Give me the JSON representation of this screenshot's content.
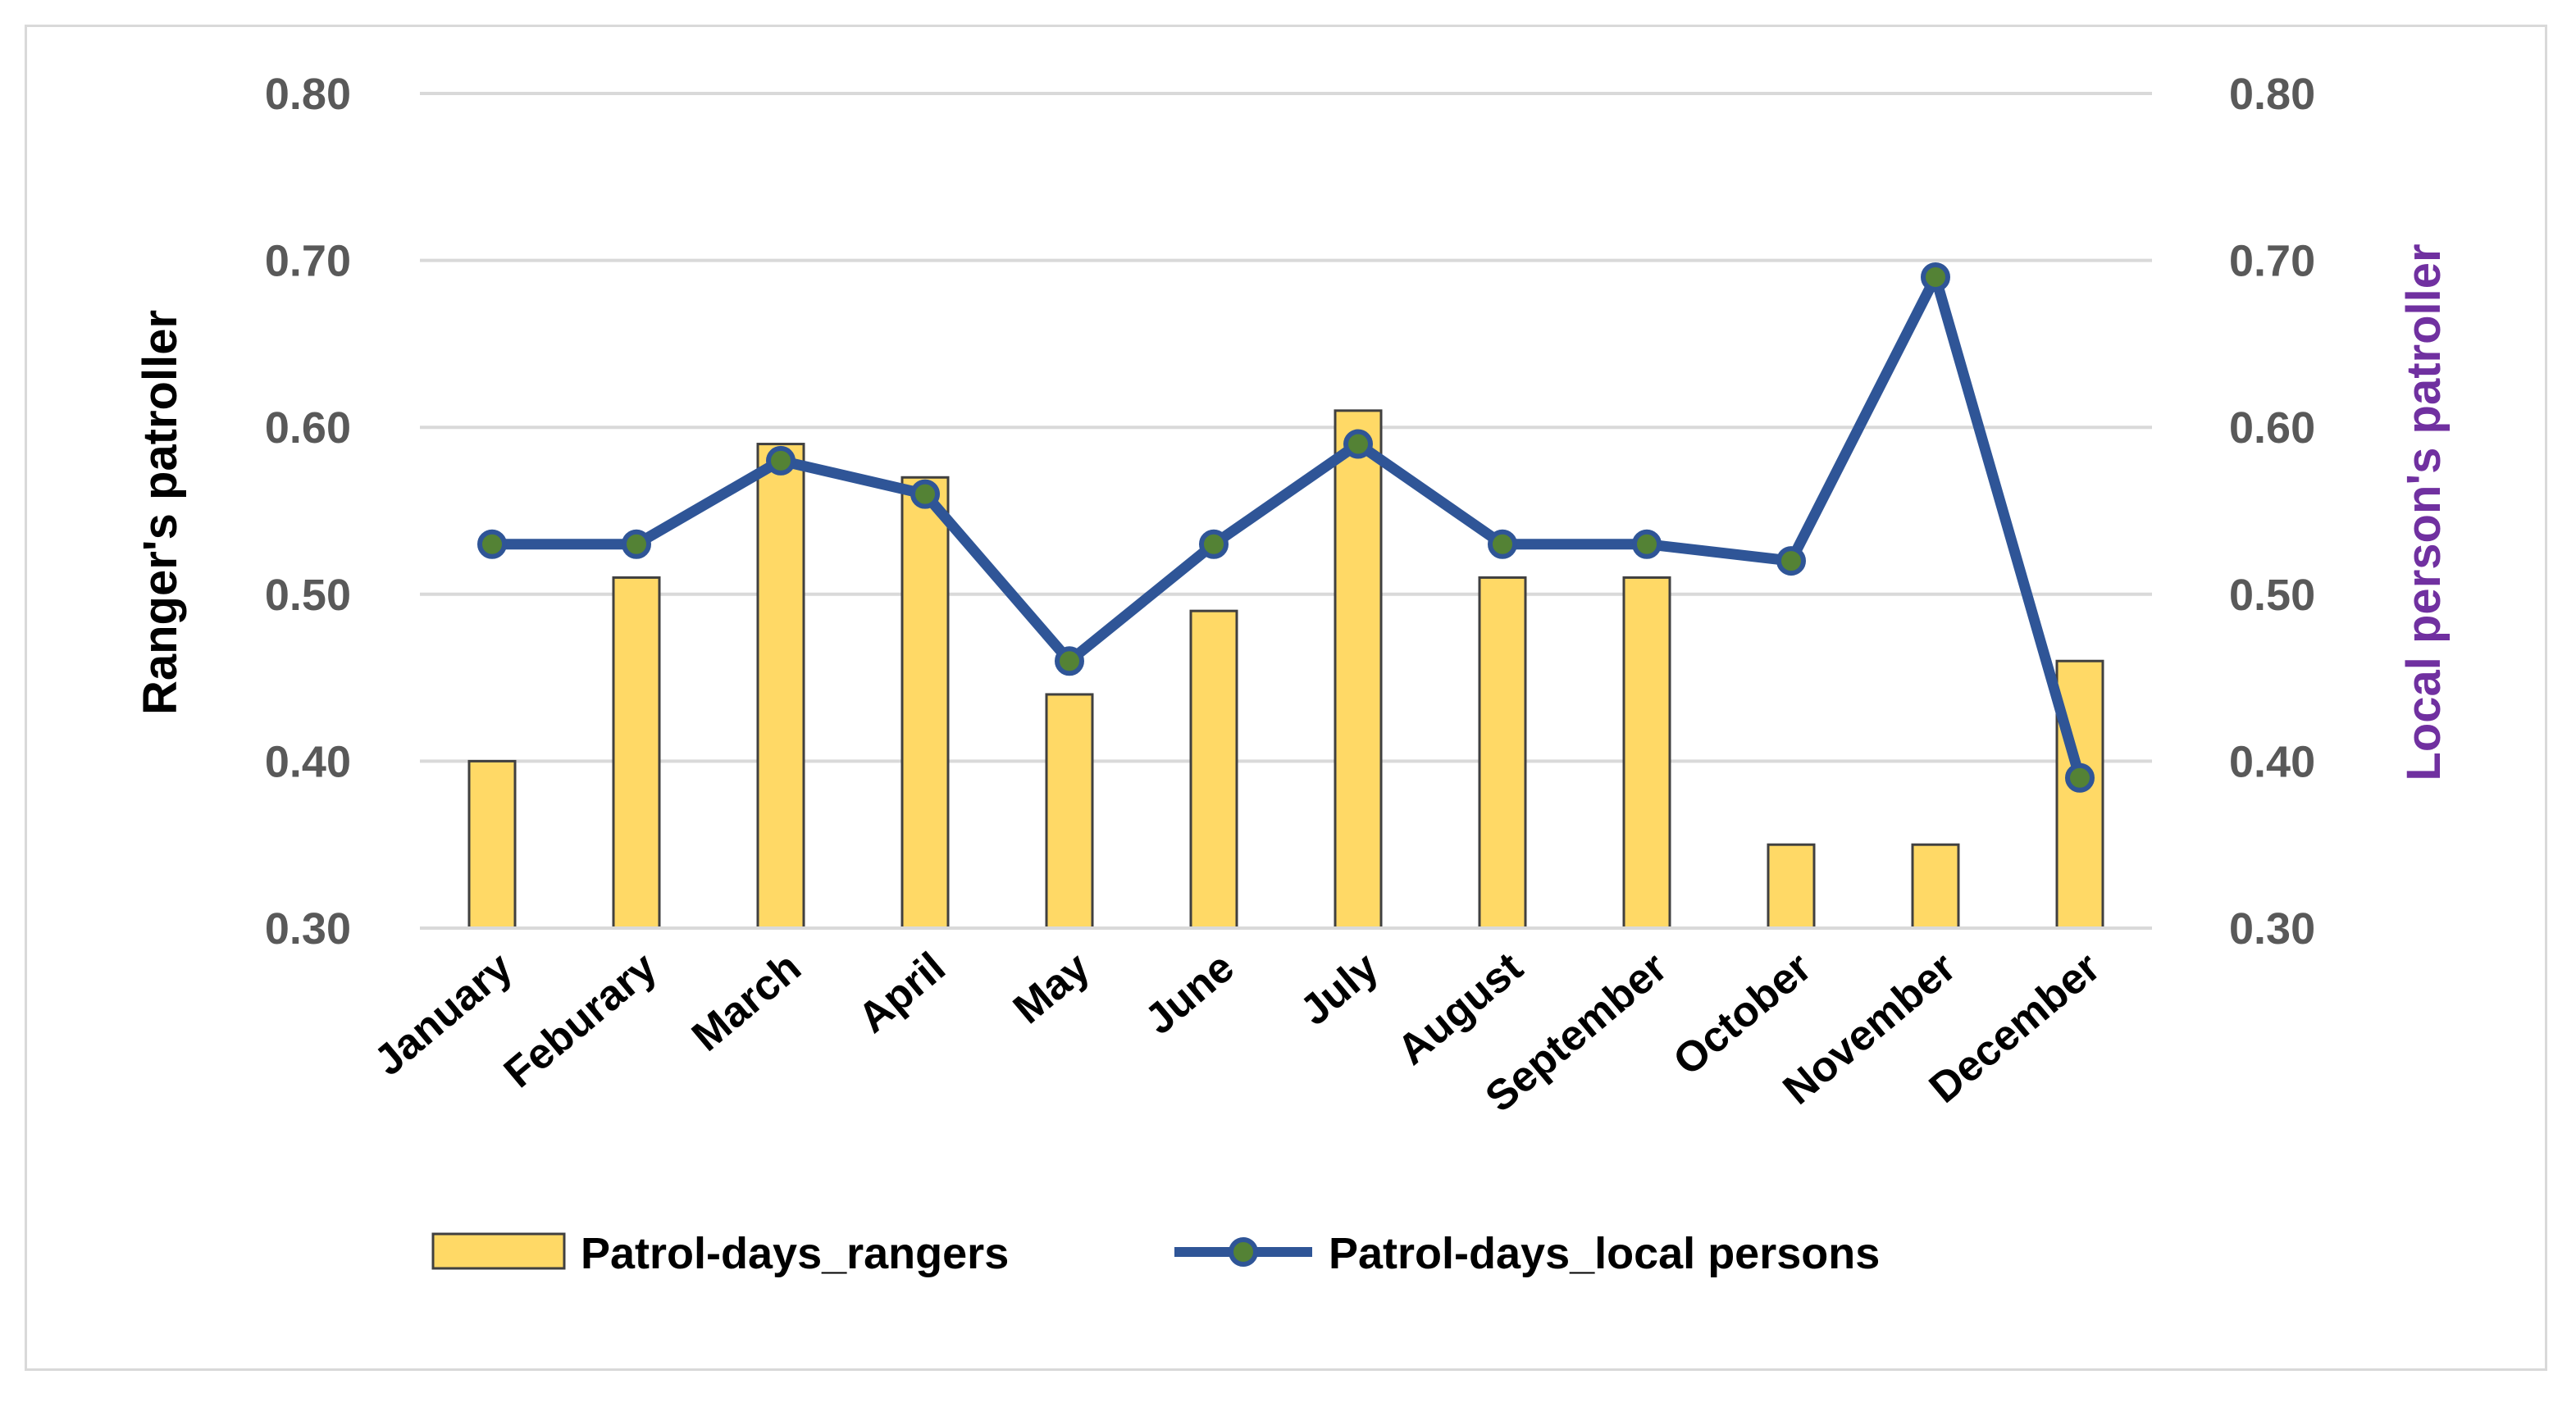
{
  "chart_data": {
    "type": "bar+line",
    "categories": [
      "January",
      "Feburary",
      "March",
      "April",
      "May",
      "June",
      "July",
      "August",
      "September",
      "October",
      "November",
      "December"
    ],
    "series": [
      {
        "name": "Patrol-days_rangers",
        "type": "bar",
        "axis": "left",
        "values": [
          0.4,
          0.51,
          0.59,
          0.57,
          0.44,
          0.49,
          0.61,
          0.51,
          0.51,
          0.35,
          0.35,
          0.46
        ],
        "color": "#FFD966",
        "stroke": "#404040"
      },
      {
        "name": "Patrol-days_local persons",
        "type": "line",
        "axis": "right",
        "values": [
          0.53,
          0.53,
          0.58,
          0.56,
          0.46,
          0.53,
          0.59,
          0.53,
          0.53,
          0.52,
          0.69,
          0.39
        ],
        "color": "#2F5597",
        "marker_color": "#548235"
      }
    ],
    "ylabel_left": "Ranger's patroller",
    "ylabel_right": "Local person's patroller",
    "ylabel_left_color": "#000000",
    "ylabel_right_color": "#7030A0",
    "ylim": [
      0.3,
      0.8
    ],
    "yticks": [
      "0.80",
      "0.70",
      "0.60",
      "0.50",
      "0.40",
      "0.30"
    ],
    "ytick_values": [
      0.8,
      0.7,
      0.6,
      0.5,
      0.4,
      0.3
    ],
    "grid": true,
    "legend_position": "bottom"
  }
}
